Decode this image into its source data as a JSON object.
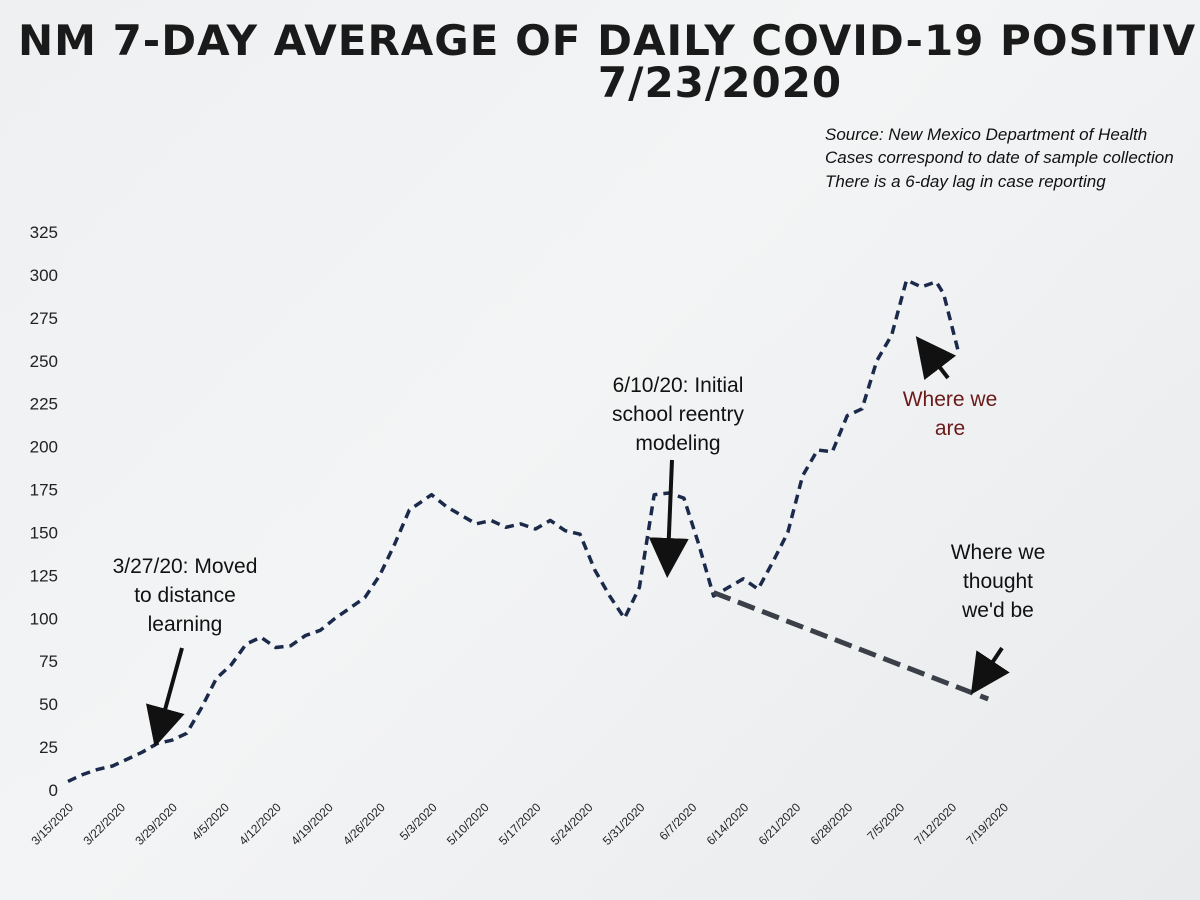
{
  "title": {
    "line1": "NM 7-DAY AVERAGE OF DAILY COVID-19 POSITIV",
    "line2": "7/23/2020"
  },
  "source_notes": [
    "Source: New Mexico Department of Health",
    "Cases correspond to date of sample collection",
    "There is a 6-day lag in case reporting"
  ],
  "annotations": {
    "distance": [
      "3/27/20: Moved",
      "to distance",
      "learning"
    ],
    "reentry": [
      "6/10/20: Initial",
      "school reentry",
      "modeling"
    ],
    "where_we_are": [
      "Where we",
      "are"
    ],
    "thought": [
      "Where we",
      "thought",
      "we'd be"
    ]
  },
  "colors": {
    "actual_line": "#1b2a4a",
    "projection_line": "#3a3f48",
    "annotation_red": "#6b1a1a"
  },
  "chart_data": {
    "type": "line",
    "title": "NM 7-DAY AVERAGE OF DAILY COVID-19 POSITIV 7/23/2020",
    "xlabel": "",
    "ylabel": "",
    "ylim": [
      0,
      325
    ],
    "yticks": [
      0,
      25,
      50,
      75,
      100,
      125,
      150,
      175,
      200,
      225,
      250,
      275,
      300,
      325
    ],
    "xticks": [
      "3/15/2020",
      "3/22/2020",
      "3/29/2020",
      "4/5/2020",
      "4/12/2020",
      "4/19/2020",
      "4/26/2020",
      "5/3/2020",
      "5/10/2020",
      "5/17/2020",
      "5/24/2020",
      "5/31/2020",
      "6/7/2020",
      "6/14/2020",
      "6/21/2020",
      "6/28/2020",
      "7/5/2020",
      "7/12/2020",
      "7/19/2020"
    ],
    "grid": false,
    "legend": "none",
    "series": [
      {
        "style": "dashed",
        "points": [
          [
            "3/15/2020",
            5
          ],
          [
            "3/17/2020",
            9
          ],
          [
            "3/19/2020",
            12
          ],
          [
            "3/21/2020",
            14
          ],
          [
            "3/23/2020",
            18
          ],
          [
            "3/25/2020",
            22
          ],
          [
            "3/27/2020",
            27
          ],
          [
            "3/29/2020",
            29
          ],
          [
            "3/31/2020",
            33
          ],
          [
            "4/2/2020",
            48
          ],
          [
            "4/4/2020",
            65
          ],
          [
            "4/6/2020",
            73
          ],
          [
            "4/8/2020",
            85
          ],
          [
            "4/10/2020",
            89
          ],
          [
            "4/12/2020",
            83
          ],
          [
            "4/14/2020",
            84
          ],
          [
            "4/16/2020",
            90
          ],
          [
            "4/18/2020",
            93
          ],
          [
            "4/20/2020",
            100
          ],
          [
            "4/22/2020",
            106
          ],
          [
            "4/24/2020",
            112
          ],
          [
            "4/26/2020",
            125
          ],
          [
            "4/28/2020",
            143
          ],
          [
            "4/30/2020",
            163
          ],
          [
            "5/2/2020",
            169
          ],
          [
            "5/3/2020",
            172
          ],
          [
            "5/5/2020",
            165
          ],
          [
            "5/7/2020",
            160
          ],
          [
            "5/9/2020",
            155
          ],
          [
            "5/11/2020",
            157
          ],
          [
            "5/13/2020",
            153
          ],
          [
            "5/15/2020",
            155
          ],
          [
            "5/17/2020",
            152
          ],
          [
            "5/19/2020",
            157
          ],
          [
            "5/21/2020",
            151
          ],
          [
            "5/23/2020",
            149
          ],
          [
            "5/25/2020",
            128
          ],
          [
            "5/27/2020",
            113
          ],
          [
            "5/29/2020",
            100
          ],
          [
            "5/31/2020",
            118
          ],
          [
            "6/2/2020",
            172
          ],
          [
            "6/4/2020",
            173
          ],
          [
            "6/6/2020",
            170
          ],
          [
            "6/8/2020",
            143
          ],
          [
            "6/10/2020",
            113
          ],
          [
            "6/12/2020",
            118
          ],
          [
            "6/14/2020",
            123
          ],
          [
            "6/16/2020",
            117
          ],
          [
            "6/18/2020",
            133
          ],
          [
            "6/20/2020",
            150
          ],
          [
            "6/22/2020",
            183
          ],
          [
            "6/24/2020",
            198
          ],
          [
            "6/26/2020",
            197
          ],
          [
            "6/28/2020",
            218
          ],
          [
            "6/30/2020",
            222
          ],
          [
            "7/2/2020",
            250
          ],
          [
            "7/4/2020",
            265
          ],
          [
            "7/6/2020",
            297
          ],
          [
            "7/8/2020",
            293
          ],
          [
            "7/10/2020",
            296
          ],
          [
            "7/11/2020",
            289
          ],
          [
            "7/13/2020",
            255
          ]
        ]
      },
      {
        "style": "dashed-projection",
        "points": [
          [
            "6/10/2020",
            115
          ],
          [
            "7/17/2020",
            53
          ]
        ]
      }
    ]
  }
}
